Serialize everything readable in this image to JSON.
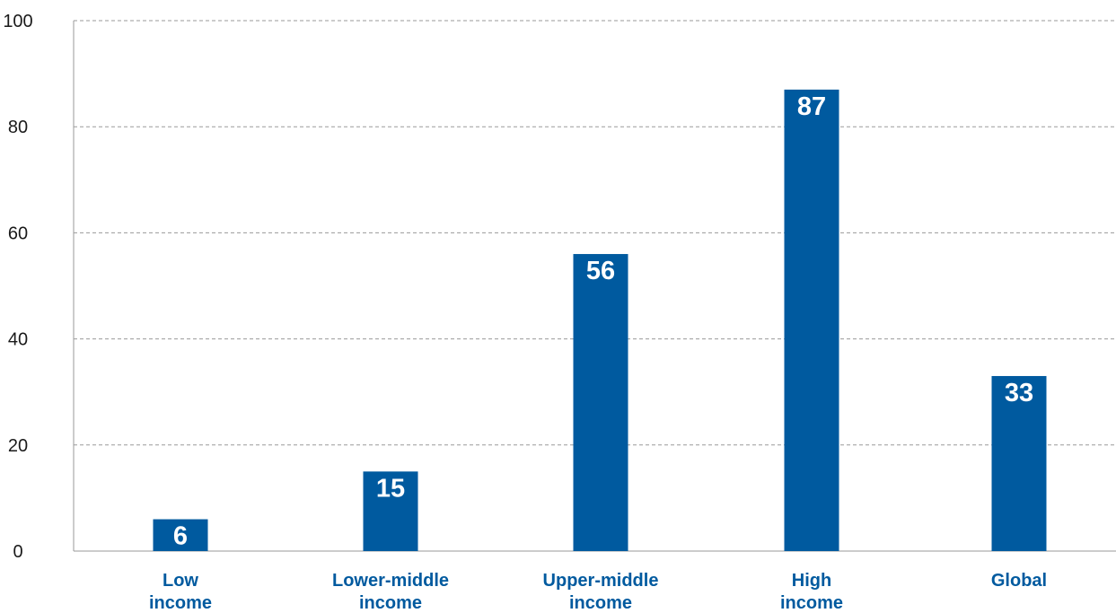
{
  "chart_data": {
    "type": "bar",
    "title": "",
    "xlabel": "",
    "ylabel": "",
    "categories": [
      [
        "Low",
        "income"
      ],
      [
        "Lower-middle",
        "income"
      ],
      [
        "Upper-middle",
        "income"
      ],
      [
        "High",
        "income"
      ],
      [
        "Global"
      ]
    ],
    "values": [
      6,
      15,
      56,
      87,
      33
    ],
    "ylim": [
      0,
      100
    ],
    "yticks": [
      0,
      20,
      40,
      60,
      80,
      100
    ],
    "grid": true,
    "bar_color": "#005a9f",
    "category_label_color": "#005a9f",
    "data_label_color": "#ffffff"
  }
}
